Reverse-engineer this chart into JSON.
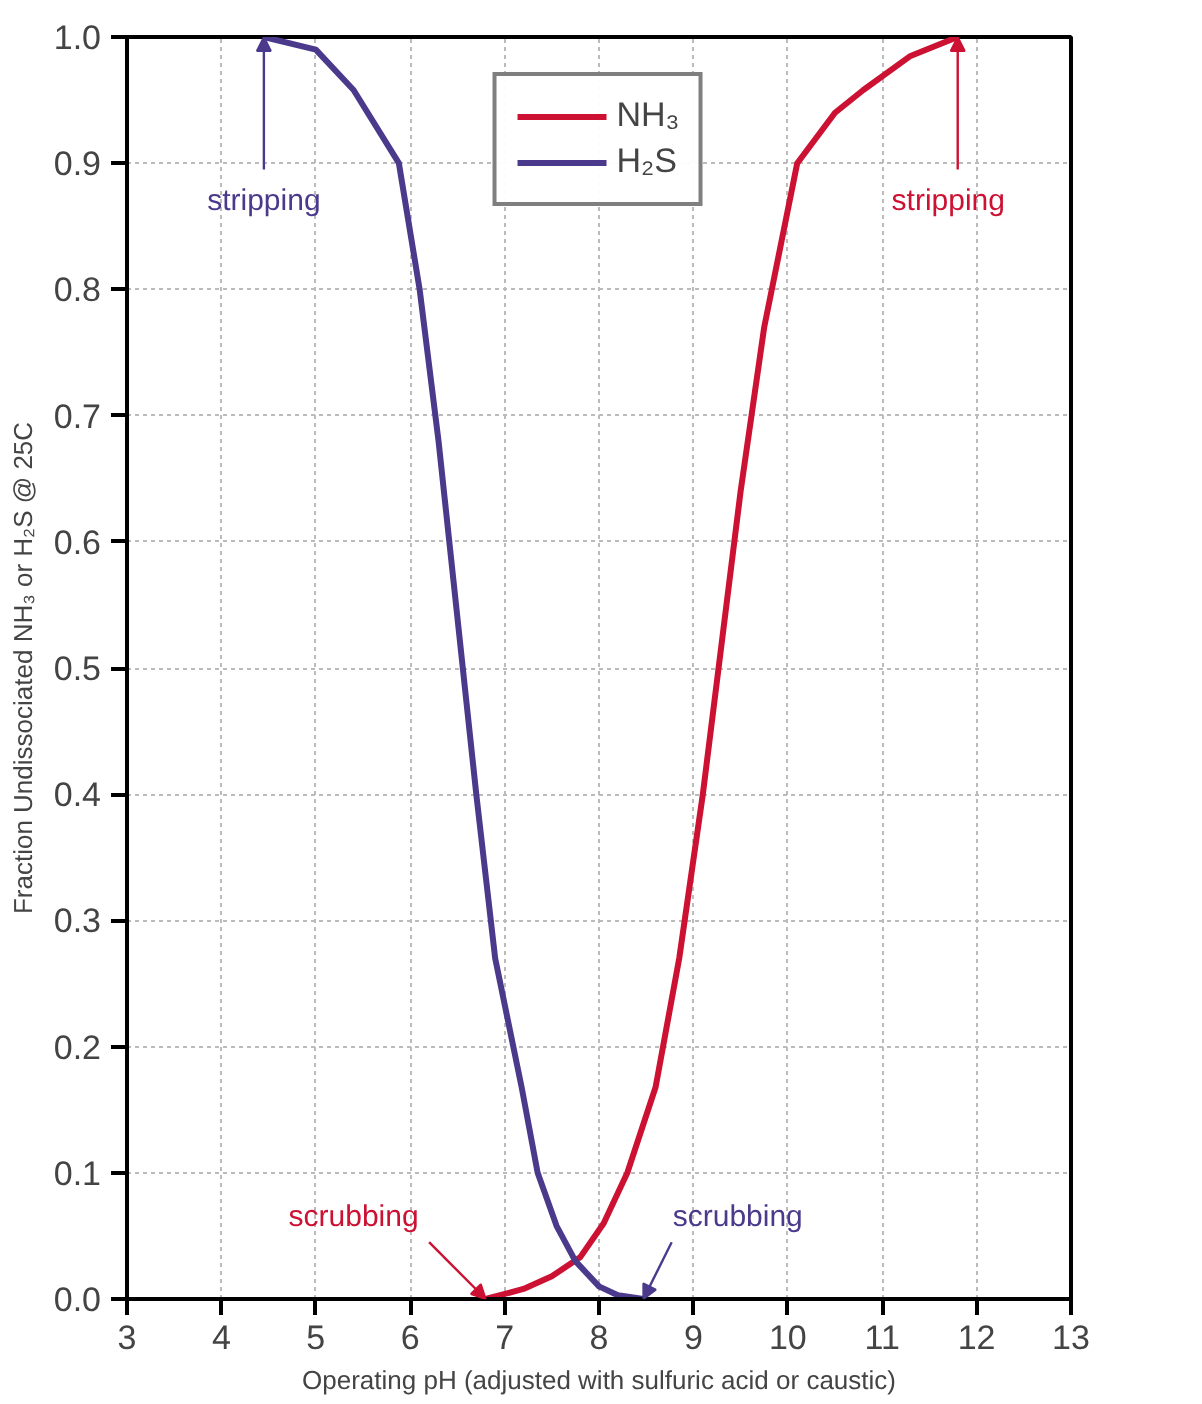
{
  "chart_data": {
    "type": "line",
    "xlabel": "Operating pH (adjusted with sulfuric acid or caustic)",
    "ylabel": "Fraction Undissociated NH₃ or H₂S @ 25C",
    "xlim": [
      3,
      13
    ],
    "ylim": [
      0,
      1
    ],
    "xticks": [
      3,
      4,
      5,
      6,
      7,
      8,
      9,
      10,
      11,
      12,
      13
    ],
    "yticks": [
      {
        "value": 0,
        "label": "0.0"
      },
      0.1,
      0.2,
      0.3,
      0.4,
      0.5,
      0.6,
      0.7,
      0.8,
      0.9,
      {
        "value": 1,
        "label": "1.0"
      }
    ],
    "grid": true,
    "legend": "top",
    "line_style": "solid",
    "marker": "none",
    "series": [
      {
        "name": "NH₃",
        "color": "#cc1133",
        "x": [
          6.8,
          7.2,
          7.5,
          7.8,
          8.05,
          8.3,
          8.6,
          8.85,
          9.1,
          9.3,
          9.5,
          9.75,
          10.1,
          10.5,
          10.8,
          11.3,
          11.8
        ],
        "values": [
          0.0,
          0.008,
          0.018,
          0.033,
          0.06,
          0.1,
          0.168,
          0.27,
          0.4,
          0.52,
          0.64,
          0.77,
          0.9,
          0.94,
          0.958,
          0.985,
          1.0
        ]
      },
      {
        "name": "H₂S",
        "color": "#4b3a8c",
        "x": [
          4.45,
          5.0,
          5.4,
          5.88,
          6.1,
          6.3,
          6.5,
          6.7,
          6.9,
          7.18,
          7.35,
          7.55,
          7.75,
          8.0,
          8.2,
          8.47
        ],
        "values": [
          1.0,
          0.99,
          0.958,
          0.9,
          0.8,
          0.68,
          0.54,
          0.4,
          0.27,
          0.168,
          0.1,
          0.058,
          0.03,
          0.01,
          0.003,
          0.0
        ]
      }
    ],
    "annotations": [
      {
        "text": "stripping",
        "x": 4.45,
        "y": 1.0
      },
      {
        "text": "stripping",
        "x": 11.8,
        "y": 1.0
      },
      {
        "text": "scrubbing",
        "x": 6.8,
        "y": 0.0
      },
      {
        "text": "scrubbing",
        "x": 8.47,
        "y": 0.0
      }
    ]
  }
}
